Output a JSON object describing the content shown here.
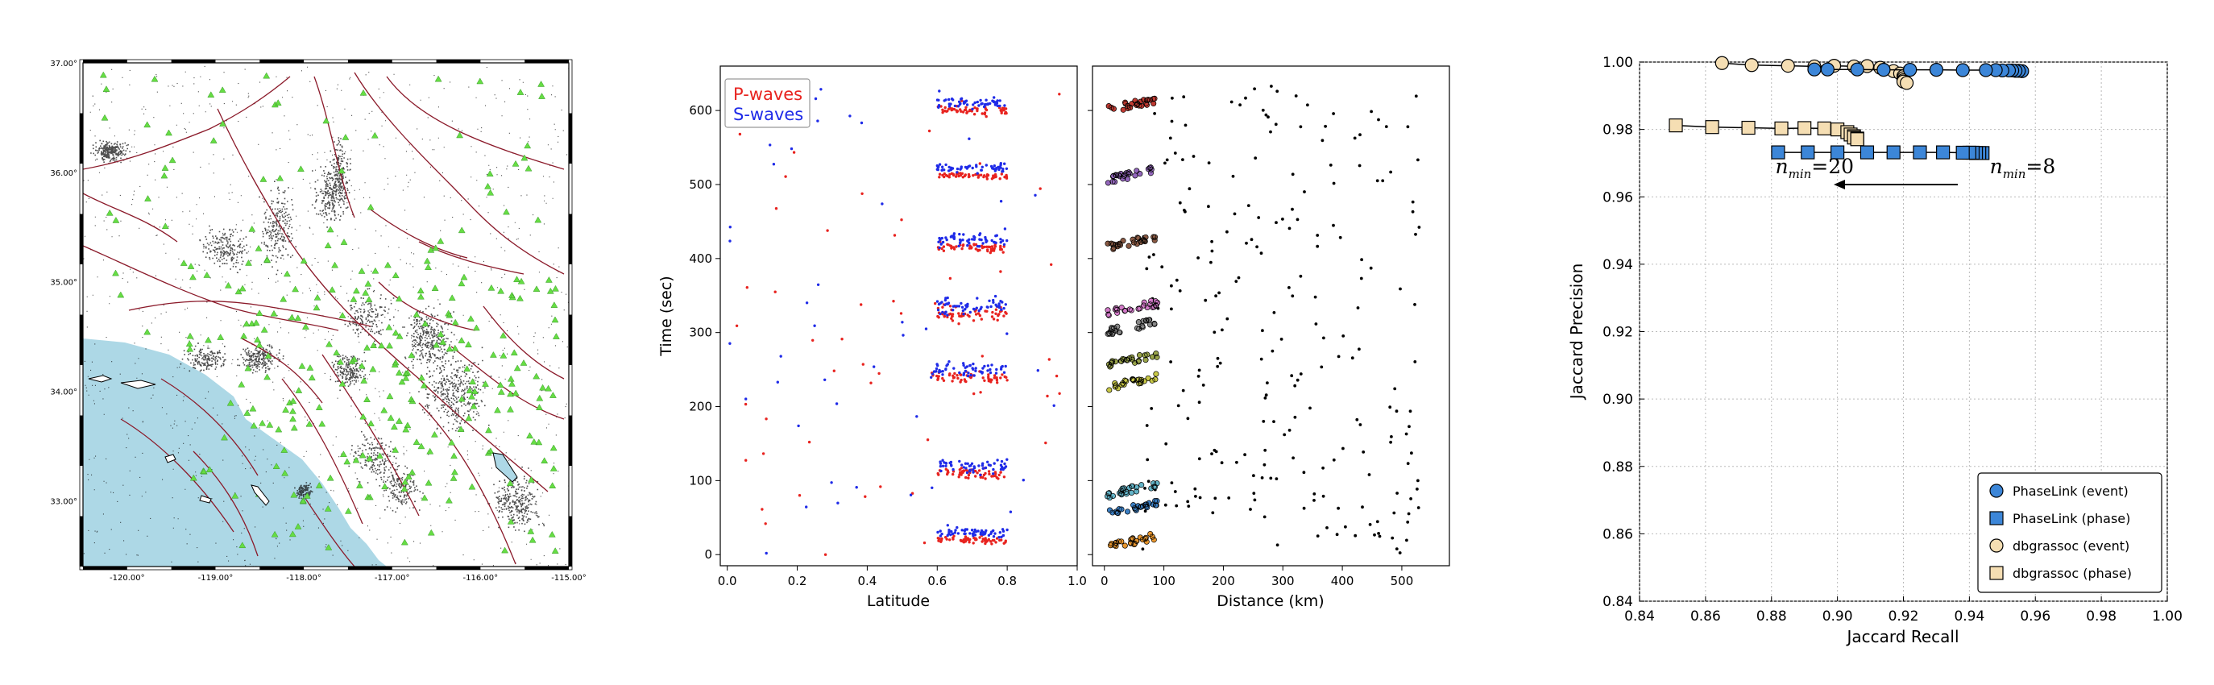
{
  "chart_data": [
    {
      "panel": "map",
      "type": "scatter",
      "title": "",
      "xlabel": "",
      "ylabel": "",
      "xlim": [
        -120.5,
        -115.0
      ],
      "ylim": [
        32.4,
        37.0
      ],
      "xticks": [
        "-120.00°",
        "-119.00°",
        "-118.00°",
        "-117.00°",
        "-116.00°",
        "-115.00°"
      ],
      "yticks": [
        "33.00°",
        "34.00°",
        "35.00°",
        "36.00°",
        "37.00°"
      ],
      "series": [
        {
          "name": "",
          "marker": "green-triangle",
          "description": "stations"
        },
        {
          "name": "",
          "marker": "black-dot",
          "description": "seismicity"
        }
      ],
      "colors": {
        "ocean": "#add8e6",
        "faults": "#8b1a2a",
        "stations": "#66dd44",
        "seismicity": "#000000"
      }
    },
    {
      "panel": "latitude-time",
      "type": "scatter",
      "xlabel": "Latitude",
      "ylabel": "Time (sec)",
      "xlim": [
        -0.02,
        1.0
      ],
      "ylim": [
        -15,
        660
      ],
      "xticks": [
        "0.0",
        "0.2",
        "0.4",
        "0.6",
        "0.8",
        "1.0"
      ],
      "yticks": [
        "0",
        "100",
        "200",
        "300",
        "400",
        "500",
        "600"
      ],
      "legend": [
        "P-waves",
        "S-waves"
      ],
      "legend_colors": [
        "#e8231f",
        "#1f2be8"
      ],
      "legend_position": "top-left",
      "clusters": [
        {
          "t": 600,
          "lat": [
            0.6,
            0.8
          ],
          "spread": 20
        },
        {
          "t": 512,
          "lat": [
            0.6,
            0.8
          ],
          "spread": 15
        },
        {
          "t": 415,
          "lat": [
            0.6,
            0.8
          ],
          "spread": 25
        },
        {
          "t": 325,
          "lat": [
            0.6,
            0.8
          ],
          "spread": 35
        },
        {
          "t": 240,
          "lat": [
            0.58,
            0.8
          ],
          "spread": 30
        },
        {
          "t": 110,
          "lat": [
            0.6,
            0.8
          ],
          "spread": 30
        },
        {
          "t": 20,
          "lat": [
            0.6,
            0.8
          ],
          "spread": 20
        }
      ]
    },
    {
      "panel": "distance-time",
      "type": "scatter",
      "xlabel": "Distance (km)",
      "ylabel": "",
      "xlim": [
        -20,
        580
      ],
      "ylim": [
        -15,
        660
      ],
      "xticks": [
        "0",
        "100",
        "200",
        "300",
        "400",
        "500"
      ],
      "cluster_colors": [
        "#e8962e",
        "#3b7fc4",
        "#64b4c8",
        "#c8c846",
        "#9aa54a",
        "#888888",
        "#d27ac8",
        "#8a5a44",
        "#9467bd",
        "#c03a32",
        "#3a8a3a"
      ],
      "cluster_times": [
        10,
        55,
        80,
        225,
        255,
        300,
        325,
        415,
        505,
        600
      ]
    },
    {
      "panel": "precision-recall",
      "type": "line",
      "xlabel": "Jaccard Recall",
      "ylabel": "Jaccard Precision",
      "xlim": [
        0.84,
        1.0
      ],
      "ylim": [
        0.84,
        1.0
      ],
      "xticks": [
        "0.84",
        "0.86",
        "0.88",
        "0.90",
        "0.92",
        "0.94",
        "0.96",
        "0.98",
        "1.00"
      ],
      "yticks": [
        "0.84",
        "0.86",
        "0.88",
        "0.90",
        "0.92",
        "0.94",
        "0.96",
        "0.98",
        "1.00"
      ],
      "grid": true,
      "legend_position": "bottom-right",
      "series": [
        {
          "name": "PhaseLink (event)",
          "marker": "circle",
          "color": "#3c86d8",
          "x": [
            0.956,
            0.955,
            0.954,
            0.953,
            0.952,
            0.95,
            0.948,
            0.945,
            0.938,
            0.93,
            0.922,
            0.914,
            0.906,
            0.897,
            0.893
          ],
          "y": [
            0.9973,
            0.9974,
            0.9974,
            0.9975,
            0.9975,
            0.9975,
            0.9976,
            0.9976,
            0.9976,
            0.9977,
            0.9977,
            0.9977,
            0.9978,
            0.9978,
            0.9978
          ]
        },
        {
          "name": "PhaseLink (phase)",
          "marker": "square",
          "color": "#3c86d8",
          "x": [
            0.944,
            0.943,
            0.942,
            0.941,
            0.94,
            0.938,
            0.932,
            0.925,
            0.917,
            0.909,
            0.9,
            0.891,
            0.882
          ],
          "y": [
            0.973,
            0.973,
            0.973,
            0.9731,
            0.9731,
            0.9731,
            0.9732,
            0.9732,
            0.9732,
            0.9732,
            0.9732,
            0.9732,
            0.9732
          ]
        },
        {
          "name": "dbgrassoc (event)",
          "marker": "circle",
          "color": "#f5deb3",
          "x": [
            0.865,
            0.874,
            0.885,
            0.893,
            0.899,
            0.905,
            0.909,
            0.913,
            0.917,
            0.919,
            0.92,
            0.92,
            0.92,
            0.92,
            0.921
          ],
          "y": [
            0.9997,
            0.9991,
            0.9989,
            0.9987,
            0.9989,
            0.9987,
            0.9988,
            0.9983,
            0.9973,
            0.9966,
            0.9958,
            0.9952,
            0.9946,
            0.9942,
            0.9938
          ]
        },
        {
          "name": "dbgrassoc (phase)",
          "marker": "square",
          "color": "#f5deb3",
          "x": [
            0.851,
            0.862,
            0.873,
            0.883,
            0.89,
            0.896,
            0.9,
            0.903,
            0.904,
            0.905,
            0.905,
            0.906,
            0.906
          ],
          "y": [
            0.9812,
            0.9807,
            0.9805,
            0.9803,
            0.9804,
            0.9803,
            0.98,
            0.9792,
            0.9785,
            0.978,
            0.9776,
            0.9773,
            0.9771
          ]
        }
      ],
      "annotations": [
        {
          "text_main": "n",
          "sub": "min",
          "value": "=20",
          "x": 0.888,
          "y": 0.9665
        },
        {
          "text_main": "n",
          "sub": "min",
          "value": "=8",
          "x": 0.953,
          "y": 0.9665
        }
      ]
    }
  ]
}
